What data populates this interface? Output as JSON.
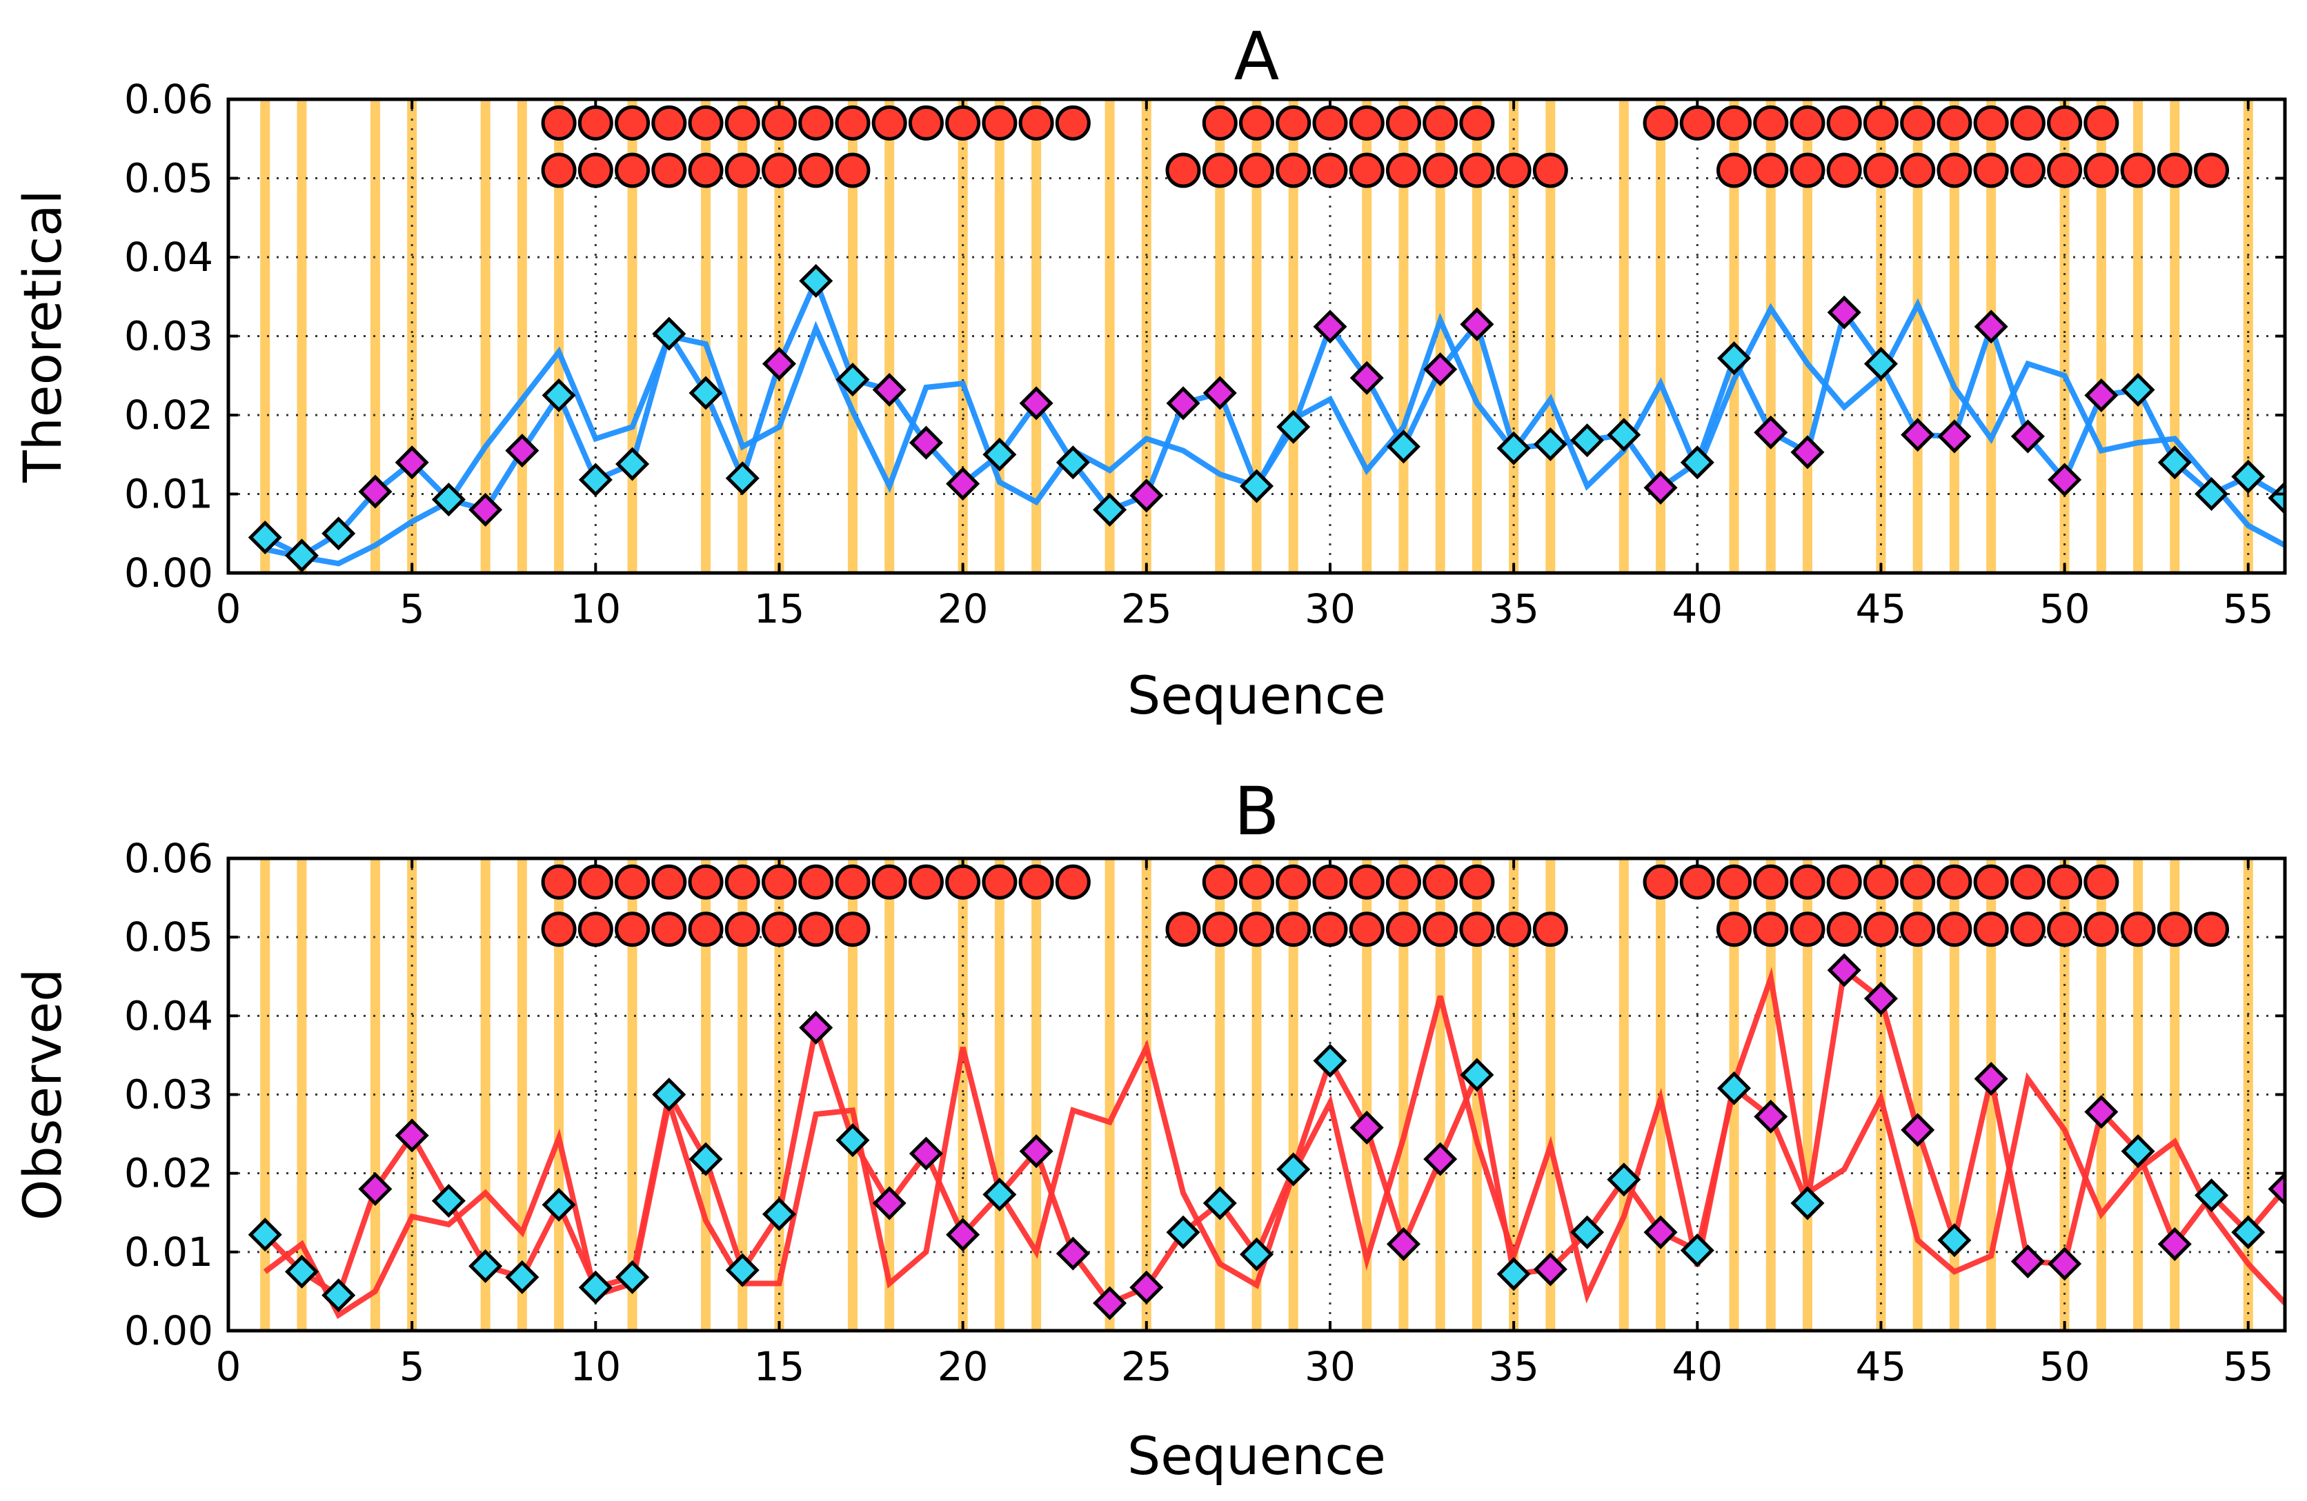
{
  "chart_data": [
    {
      "type": "line",
      "title": "A",
      "xlabel": "Sequence",
      "ylabel": "Theoretical",
      "xlim": [
        0,
        56
      ],
      "ylim": [
        0,
        0.06
      ],
      "xticks": [
        0,
        5,
        10,
        15,
        20,
        25,
        30,
        35,
        40,
        45,
        50,
        55
      ],
      "yticks": [
        0.0,
        0.01,
        0.02,
        0.03,
        0.04,
        0.05,
        0.06
      ],
      "ytick_labels": [
        "0.00",
        "0.01",
        "0.02",
        "0.03",
        "0.04",
        "0.05",
        "0.06"
      ],
      "grid": true,
      "line_color": "#1e90ff",
      "markers": {
        "x": [
          1,
          2,
          3,
          4,
          5,
          6,
          7,
          8,
          9,
          10,
          11,
          12,
          13,
          14,
          15,
          16,
          17,
          18,
          19,
          20,
          21,
          22,
          23,
          24,
          25,
          26,
          27,
          28,
          29,
          30,
          31,
          32,
          33,
          34,
          35,
          36,
          37,
          38,
          39,
          40,
          41,
          42,
          43,
          44,
          45,
          46,
          47,
          48,
          49,
          50,
          51,
          52,
          53,
          54,
          55,
          56
        ],
        "y": [
          0.0045,
          0.0022,
          0.005,
          0.0103,
          0.014,
          0.0093,
          0.008,
          0.0155,
          0.0225,
          0.0118,
          0.0138,
          0.0303,
          0.0228,
          0.012,
          0.0265,
          0.037,
          0.0245,
          0.0232,
          0.0165,
          0.0113,
          0.015,
          0.0215,
          0.014,
          0.008,
          0.0098,
          0.0215,
          0.0228,
          0.011,
          0.0185,
          0.0312,
          0.0247,
          0.016,
          0.0258,
          0.0315,
          0.0158,
          0.0163,
          0.0168,
          0.0175,
          0.0108,
          0.014,
          0.0272,
          0.0178,
          0.0153,
          0.033,
          0.0265,
          0.0175,
          0.0173,
          0.0312,
          0.0173,
          0.0118,
          0.0225,
          0.0232,
          0.014,
          0.01,
          0.0122,
          0.0095
        ],
        "colors": [
          "cyan",
          "cyan",
          "cyan",
          "magenta",
          "magenta",
          "cyan",
          "magenta",
          "magenta",
          "cyan",
          "cyan",
          "cyan",
          "cyan",
          "cyan",
          "cyan",
          "magenta",
          "cyan",
          "cyan",
          "magenta",
          "magenta",
          "magenta",
          "cyan",
          "magenta",
          "cyan",
          "cyan",
          "magenta",
          "magenta",
          "magenta",
          "cyan",
          "cyan",
          "magenta",
          "magenta",
          "cyan",
          "magenta",
          "magenta",
          "cyan",
          "cyan",
          "cyan",
          "cyan",
          "magenta",
          "cyan",
          "cyan",
          "magenta",
          "magenta",
          "magenta",
          "cyan",
          "magenta",
          "magenta",
          "magenta",
          "magenta",
          "magenta",
          "magenta",
          "cyan",
          "cyan",
          "cyan",
          "cyan",
          "cyan"
        ]
      },
      "series": [
        {
          "name": "through-markers",
          "values": [
            0.0045,
            0.0022,
            0.005,
            0.0103,
            0.014,
            0.0093,
            0.008,
            0.0155,
            0.0225,
            0.0118,
            0.0138,
            0.0303,
            0.0228,
            0.012,
            0.0265,
            0.037,
            0.0245,
            0.0232,
            0.0165,
            0.0113,
            0.015,
            0.0215,
            0.014,
            0.008,
            0.0098,
            0.0215,
            0.0228,
            0.011,
            0.0185,
            0.0312,
            0.0247,
            0.016,
            0.0258,
            0.0315,
            0.0158,
            0.0163,
            0.0168,
            0.0175,
            0.0108,
            0.014,
            0.0272,
            0.0178,
            0.0153,
            0.033,
            0.0265,
            0.0175,
            0.0173,
            0.0312,
            0.0173,
            0.0118,
            0.0225,
            0.0232,
            0.014,
            0.01,
            0.0122,
            0.0095
          ]
        },
        {
          "name": "smooth",
          "values": [
            0.003,
            0.002,
            0.0012,
            0.0035,
            0.0065,
            0.009,
            0.016,
            0.022,
            0.028,
            0.017,
            0.0185,
            0.03,
            0.029,
            0.016,
            0.0185,
            0.031,
            0.0205,
            0.011,
            0.0235,
            0.024,
            0.0115,
            0.009,
            0.0155,
            0.013,
            0.017,
            0.0155,
            0.0125,
            0.011,
            0.0195,
            0.022,
            0.013,
            0.0185,
            0.032,
            0.0215,
            0.0155,
            0.022,
            0.011,
            0.0155,
            0.024,
            0.013,
            0.0245,
            0.0335,
            0.0265,
            0.021,
            0.025,
            0.034,
            0.0235,
            0.017,
            0.0265,
            0.025,
            0.0155,
            0.0165,
            0.017,
            0.0115,
            0.006,
            0.0035
          ]
        }
      ],
      "circle_rows": [
        {
          "row": "upper",
          "y": 0.057,
          "x": [
            9,
            10,
            11,
            12,
            13,
            14,
            15,
            16,
            17,
            18,
            19,
            20,
            21,
            22,
            23,
            27,
            28,
            29,
            30,
            31,
            32,
            33,
            34,
            39,
            40,
            41,
            42,
            43,
            44,
            45,
            46,
            47,
            48,
            49,
            50,
            51
          ]
        },
        {
          "row": "lower",
          "y": 0.051,
          "x": [
            9,
            10,
            11,
            12,
            13,
            14,
            15,
            16,
            17,
            26,
            27,
            28,
            29,
            30,
            31,
            32,
            33,
            34,
            35,
            36,
            41,
            42,
            43,
            44,
            45,
            46,
            47,
            48,
            49,
            50,
            51,
            52,
            53,
            54
          ]
        }
      ],
      "vlines_x": [
        1,
        2,
        4,
        5,
        7,
        8,
        9,
        11,
        13,
        14,
        15,
        17,
        18,
        20,
        21,
        22,
        24,
        25,
        27,
        28,
        29,
        31,
        32,
        33,
        34,
        35,
        36,
        38,
        39,
        41,
        42,
        43,
        45,
        46,
        47,
        48,
        50,
        51,
        52,
        53,
        55
      ]
    },
    {
      "type": "line",
      "title": "B",
      "xlabel": "Sequence",
      "ylabel": "Observed",
      "xlim": [
        0,
        56
      ],
      "ylim": [
        0,
        0.06
      ],
      "xticks": [
        0,
        5,
        10,
        15,
        20,
        25,
        30,
        35,
        40,
        45,
        50,
        55
      ],
      "yticks": [
        0.0,
        0.01,
        0.02,
        0.03,
        0.04,
        0.05,
        0.06
      ],
      "ytick_labels": [
        "0.00",
        "0.01",
        "0.02",
        "0.03",
        "0.04",
        "0.05",
        "0.06"
      ],
      "grid": true,
      "line_color": "#ff3333",
      "markers": {
        "x": [
          1,
          2,
          3,
          4,
          5,
          6,
          7,
          8,
          9,
          10,
          11,
          12,
          13,
          14,
          15,
          16,
          17,
          18,
          19,
          20,
          21,
          22,
          23,
          24,
          25,
          26,
          27,
          28,
          29,
          30,
          31,
          32,
          33,
          34,
          35,
          36,
          37,
          38,
          39,
          40,
          41,
          42,
          43,
          44,
          45,
          46,
          47,
          48,
          49,
          50,
          51,
          52,
          53,
          54,
          55,
          56
        ],
        "y": [
          0.0122,
          0.0075,
          0.0045,
          0.018,
          0.0248,
          0.0165,
          0.0082,
          0.0068,
          0.016,
          0.0055,
          0.0068,
          0.03,
          0.0218,
          0.0077,
          0.0148,
          0.0385,
          0.0242,
          0.0162,
          0.0225,
          0.0122,
          0.0173,
          0.0228,
          0.0098,
          0.0035,
          0.0055,
          0.0125,
          0.0162,
          0.0097,
          0.0205,
          0.0343,
          0.0258,
          0.011,
          0.0218,
          0.0325,
          0.0072,
          0.0078,
          0.0125,
          0.0192,
          0.0125,
          0.0102,
          0.0308,
          0.0272,
          0.0162,
          0.0458,
          0.0422,
          0.0255,
          0.0115,
          0.032,
          0.0088,
          0.0085,
          0.0278,
          0.0228,
          0.011,
          0.0172,
          0.0125,
          0.018
        ],
        "colors": [
          "cyan",
          "cyan",
          "cyan",
          "magenta",
          "magenta",
          "cyan",
          "cyan",
          "cyan",
          "cyan",
          "cyan",
          "cyan",
          "cyan",
          "cyan",
          "cyan",
          "cyan",
          "magenta",
          "cyan",
          "magenta",
          "magenta",
          "magenta",
          "cyan",
          "magenta",
          "magenta",
          "magenta",
          "magenta",
          "cyan",
          "cyan",
          "cyan",
          "cyan",
          "cyan",
          "magenta",
          "magenta",
          "magenta",
          "cyan",
          "cyan",
          "magenta",
          "cyan",
          "cyan",
          "magenta",
          "cyan",
          "cyan",
          "magenta",
          "cyan",
          "magenta",
          "magenta",
          "magenta",
          "cyan",
          "magenta",
          "magenta",
          "magenta",
          "magenta",
          "cyan",
          "magenta",
          "cyan",
          "cyan",
          "magenta"
        ]
      },
      "series": [
        {
          "name": "through-markers",
          "values": [
            0.0122,
            0.0075,
            0.0045,
            0.018,
            0.0248,
            0.0165,
            0.0082,
            0.0068,
            0.016,
            0.0055,
            0.0068,
            0.03,
            0.0218,
            0.0077,
            0.0148,
            0.0385,
            0.0242,
            0.0162,
            0.0225,
            0.0122,
            0.0173,
            0.0228,
            0.0098,
            0.0035,
            0.0055,
            0.0125,
            0.0162,
            0.0097,
            0.0205,
            0.0343,
            0.0258,
            0.011,
            0.0218,
            0.0325,
            0.0072,
            0.0078,
            0.0125,
            0.0192,
            0.0125,
            0.0102,
            0.0308,
            0.0272,
            0.0162,
            0.0458,
            0.0422,
            0.0255,
            0.0115,
            0.032,
            0.0088,
            0.0085,
            0.0278,
            0.0228,
            0.011,
            0.0172,
            0.0125,
            0.018
          ]
        },
        {
          "name": "alternate",
          "values": [
            0.0075,
            0.011,
            0.002,
            0.005,
            0.0145,
            0.0135,
            0.0175,
            0.0125,
            0.0245,
            0.0045,
            0.006,
            0.029,
            0.014,
            0.006,
            0.006,
            0.0275,
            0.028,
            0.006,
            0.01,
            0.036,
            0.0175,
            0.01,
            0.028,
            0.0265,
            0.036,
            0.0175,
            0.0085,
            0.0058,
            0.02,
            0.029,
            0.009,
            0.0245,
            0.0425,
            0.024,
            0.0095,
            0.0235,
            0.0045,
            0.0145,
            0.0295,
            0.0082,
            0.0315,
            0.0448,
            0.0175,
            0.0205,
            0.0295,
            0.0115,
            0.0075,
            0.0095,
            0.032,
            0.0255,
            0.0148,
            0.0205,
            0.024,
            0.0148,
            0.0085,
            0.0035
          ]
        }
      ],
      "circle_rows": [
        {
          "row": "upper",
          "y": 0.057,
          "x": [
            9,
            10,
            11,
            12,
            13,
            14,
            15,
            16,
            17,
            18,
            19,
            20,
            21,
            22,
            23,
            27,
            28,
            29,
            30,
            31,
            32,
            33,
            34,
            39,
            40,
            41,
            42,
            43,
            44,
            45,
            46,
            47,
            48,
            49,
            50,
            51
          ]
        },
        {
          "row": "lower",
          "y": 0.051,
          "x": [
            9,
            10,
            11,
            12,
            13,
            14,
            15,
            16,
            17,
            26,
            27,
            28,
            29,
            30,
            31,
            32,
            33,
            34,
            35,
            36,
            41,
            42,
            43,
            44,
            45,
            46,
            47,
            48,
            49,
            50,
            51,
            52,
            53,
            54
          ]
        }
      ],
      "vlines_x": [
        1,
        2,
        4,
        5,
        7,
        8,
        9,
        11,
        13,
        14,
        15,
        17,
        18,
        20,
        21,
        22,
        24,
        25,
        27,
        28,
        29,
        31,
        32,
        33,
        34,
        35,
        36,
        38,
        39,
        41,
        42,
        43,
        45,
        46,
        47,
        48,
        50,
        51,
        52,
        53,
        55
      ]
    }
  ],
  "colors": {
    "cyan_marker": "#35d6f2",
    "magenta_marker": "#e030e0",
    "circle_fill": "#ff3b30",
    "vline": "#ffcc66",
    "grid": "#333333"
  }
}
